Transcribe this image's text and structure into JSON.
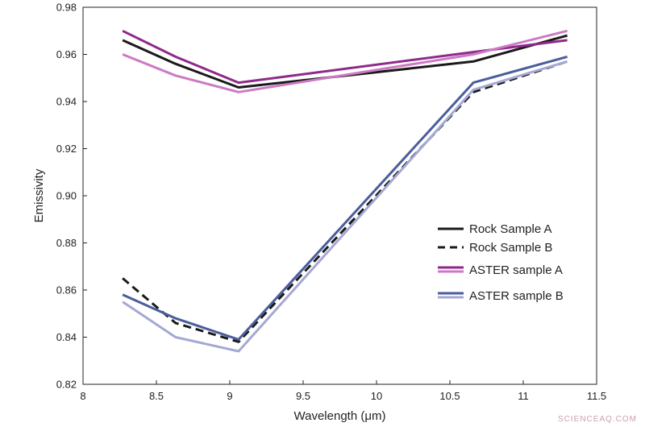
{
  "chart_data": {
    "type": "line",
    "title": "",
    "xlabel": "Wavelength (μm)",
    "ylabel": "Emissivity",
    "xlim": [
      8,
      11.5
    ],
    "ylim": [
      0.82,
      0.98
    ],
    "xticks": [
      8,
      8.5,
      9,
      9.5,
      10,
      10.5,
      11,
      11.5
    ],
    "xtick_labels": [
      "8",
      "8.5",
      "9",
      "9.5",
      "10",
      "10.5",
      "11",
      "11.5"
    ],
    "yticks": [
      0.82,
      0.84,
      0.86,
      0.88,
      0.9,
      0.92,
      0.94,
      0.96,
      0.98
    ],
    "ytick_labels": [
      "0.82",
      "0.84",
      "0.86",
      "0.88",
      "0.90",
      "0.92",
      "0.94",
      "0.96",
      "0.98"
    ],
    "grid": false,
    "legend_position": "right",
    "series": [
      {
        "name": "Rock Sample A",
        "color": "#1a1a1a",
        "dash": "solid",
        "x": [
          8.27,
          8.63,
          9.06,
          10.66,
          11.3
        ],
        "y": [
          0.966,
          0.956,
          0.946,
          0.957,
          0.968
        ]
      },
      {
        "name": "Rock Sample B",
        "color": "#1a1a1a",
        "dash": "dashed",
        "x": [
          8.27,
          8.63,
          9.06,
          10.66,
          11.3
        ],
        "y": [
          0.865,
          0.846,
          0.838,
          0.944,
          0.957
        ]
      },
      {
        "name": "ASTER sample A",
        "color": "#8e2a8b",
        "dash": "solid",
        "x": [
          8.27,
          8.63,
          9.06,
          10.66,
          11.3
        ],
        "y": [
          0.97,
          0.959,
          0.948,
          0.961,
          0.966
        ]
      },
      {
        "name": "",
        "color": "#cc7ac4",
        "dash": "solid",
        "x": [
          8.27,
          8.63,
          9.06,
          10.66,
          11.3
        ],
        "y": [
          0.96,
          0.951,
          0.944,
          0.96,
          0.97
        ]
      },
      {
        "name": "ASTER sample B",
        "color": "#4a5d9c",
        "dash": "solid",
        "x": [
          8.27,
          8.63,
          9.06,
          10.66,
          11.3
        ],
        "y": [
          0.858,
          0.848,
          0.839,
          0.948,
          0.959
        ]
      },
      {
        "name": "",
        "color": "#a5a8d2",
        "dash": "solid",
        "x": [
          8.27,
          8.63,
          9.06,
          10.66,
          11.3
        ],
        "y": [
          0.855,
          0.84,
          0.834,
          0.945,
          0.957
        ]
      }
    ]
  },
  "watermark": "SCIENCEAQ.COM"
}
